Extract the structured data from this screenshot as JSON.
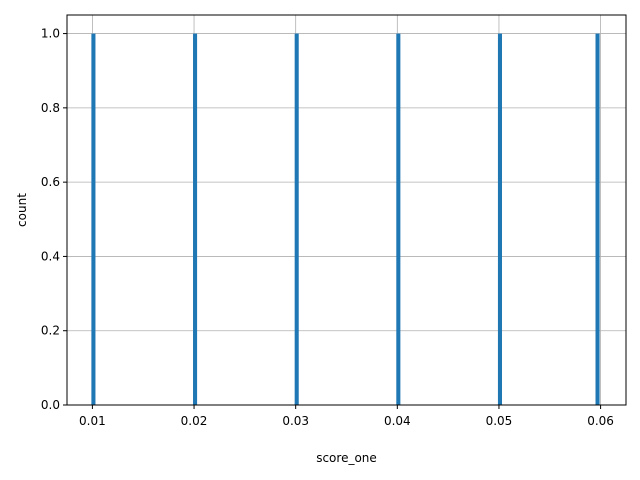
{
  "chart_data": {
    "type": "bar",
    "title": "",
    "xlabel": "score_one",
    "ylabel": "count",
    "xlim": [
      0.0075,
      0.0625
    ],
    "ylim": [
      0,
      1.05
    ],
    "x_ticks": [
      0.01,
      0.02,
      0.03,
      0.04,
      0.05,
      0.06
    ],
    "x_tick_labels": [
      "0.01",
      "0.02",
      "0.03",
      "0.04",
      "0.05",
      "0.06"
    ],
    "y_ticks": [
      0.0,
      0.2,
      0.4,
      0.6,
      0.8,
      1.0
    ],
    "y_tick_labels": [
      "0.0",
      "0.2",
      "0.4",
      "0.6",
      "0.8",
      "1.0"
    ],
    "grid": true,
    "bar_width": 0.0004,
    "x": [
      0.0101,
      0.0201,
      0.0301,
      0.0401,
      0.0501,
      0.0597
    ],
    "values": [
      1,
      1,
      1,
      1,
      1,
      1
    ],
    "bar_color": "#1f77b4",
    "grid_color": "#b0b0b0"
  }
}
